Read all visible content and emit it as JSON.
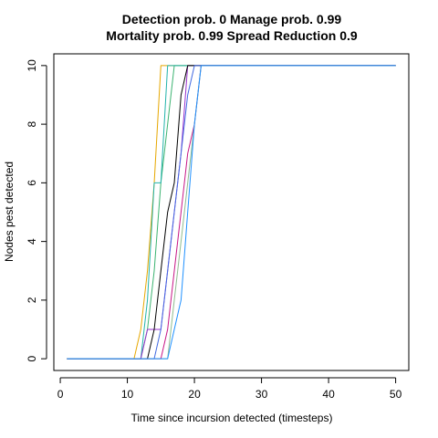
{
  "chart_data": {
    "type": "line",
    "title": "Detection prob. 0 Manage prob. 0.99",
    "subtitle": "Mortality prob. 0.99 Spread Reduction 0.9",
    "xlabel": "Time since incursion detected (timesteps)",
    "ylabel": "Nodes pest detected",
    "xlim": [
      -0.96,
      51.96
    ],
    "ylim": [
      -0.4,
      10.4
    ],
    "xticks": [
      0,
      10,
      20,
      30,
      40,
      50
    ],
    "yticks": [
      0,
      2,
      4,
      6,
      8,
      10
    ],
    "grid": false,
    "series": [
      {
        "color": "#e6a700",
        "x": [
          1,
          11,
          12,
          13,
          14,
          15,
          16,
          50
        ],
        "y": [
          0,
          0,
          1,
          3,
          6,
          10,
          10,
          10
        ]
      },
      {
        "color": "#3cb371",
        "x": [
          1,
          12,
          13,
          14,
          15,
          16,
          17,
          50
        ],
        "y": [
          0,
          0,
          1,
          3,
          6,
          8,
          10,
          10
        ]
      },
      {
        "color": "#20b2aa",
        "x": [
          1,
          12,
          13,
          14,
          15,
          16,
          50
        ],
        "y": [
          0,
          0,
          2,
          6,
          6,
          10,
          10
        ]
      },
      {
        "color": "#9932cc",
        "x": [
          1,
          12,
          13,
          14,
          15,
          16,
          17,
          18,
          19,
          50
        ],
        "y": [
          0,
          0,
          1,
          1,
          1,
          3,
          5,
          7,
          10,
          10
        ]
      },
      {
        "color": "#000000",
        "x": [
          1,
          13,
          14,
          15,
          16,
          17,
          18,
          19,
          50
        ],
        "y": [
          0,
          0,
          1,
          3,
          5,
          6,
          9,
          10,
          10
        ]
      },
      {
        "color": "#4169e1",
        "x": [
          1,
          14,
          15,
          16,
          17,
          18,
          19,
          20,
          50
        ],
        "y": [
          0,
          0,
          1,
          3,
          5,
          7,
          9,
          10,
          10
        ]
      },
      {
        "color": "#c71585",
        "x": [
          1,
          15,
          16,
          17,
          18,
          19,
          20,
          21,
          50
        ],
        "y": [
          0,
          0,
          1,
          3,
          5,
          7,
          8,
          10,
          10
        ]
      },
      {
        "color": "#8fbc8f",
        "x": [
          1,
          16,
          17,
          18,
          19,
          20,
          21,
          50
        ],
        "y": [
          0,
          0,
          2,
          4,
          6,
          8,
          10,
          10
        ]
      },
      {
        "color": "#1e90ff",
        "x": [
          1,
          16,
          17,
          18,
          19,
          20,
          21,
          50
        ],
        "y": [
          0,
          0,
          1,
          2,
          5,
          8,
          10,
          10
        ]
      }
    ]
  }
}
